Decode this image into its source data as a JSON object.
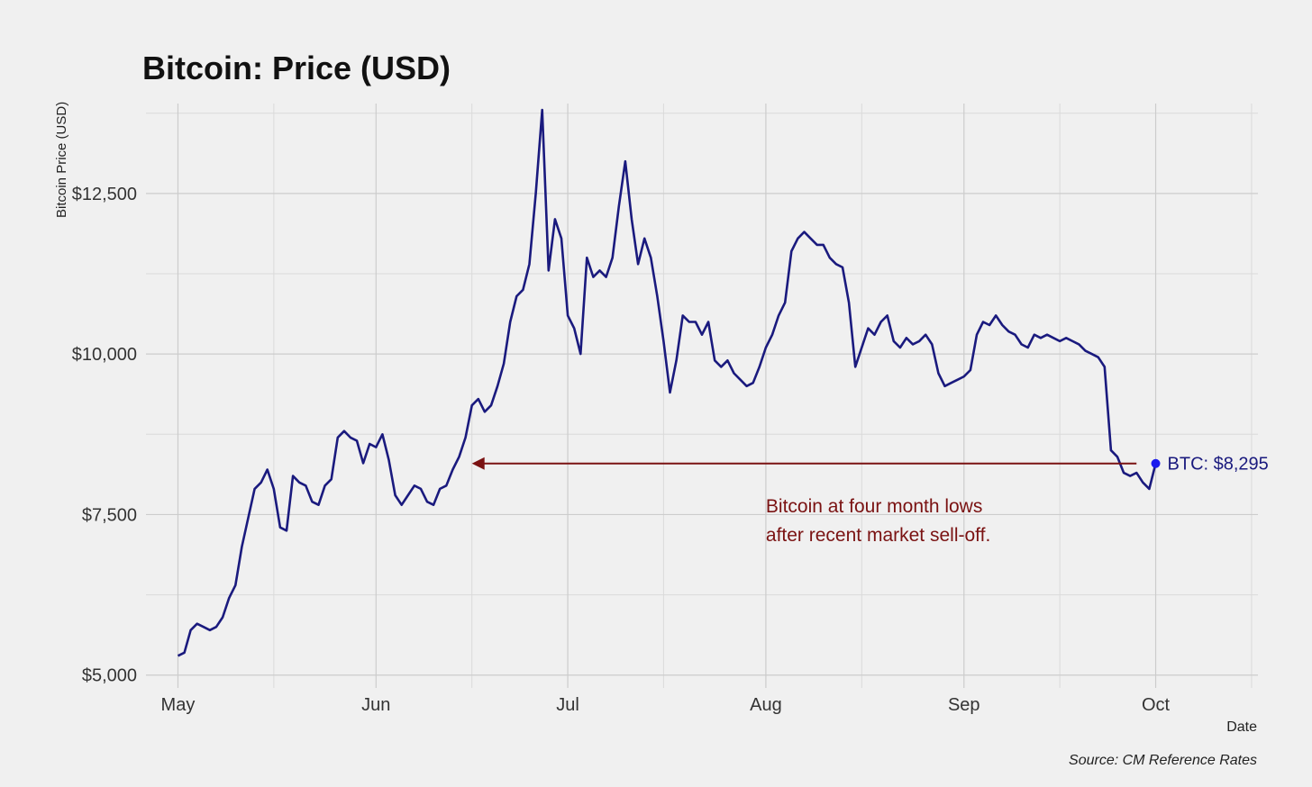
{
  "chart_data": {
    "type": "line",
    "title": "Bitcoin: Price (USD)",
    "xlabel": "Date",
    "ylabel": "Bitcoin Price (USD)",
    "caption": "Source: CM Reference Rates",
    "x_range": [
      "2019-04-26",
      "2019-10-17"
    ],
    "ylim": [
      4800,
      13900
    ],
    "x_ticks": [
      {
        "date": "2019-05-01",
        "label": "May"
      },
      {
        "date": "2019-06-01",
        "label": "Jun"
      },
      {
        "date": "2019-07-01",
        "label": "Jul"
      },
      {
        "date": "2019-08-01",
        "label": "Aug"
      },
      {
        "date": "2019-09-01",
        "label": "Sep"
      },
      {
        "date": "2019-10-01",
        "label": "Oct"
      }
    ],
    "x_minor_gridlines": [
      "2019-05-16",
      "2019-06-16",
      "2019-07-16",
      "2019-08-16",
      "2019-09-16",
      "2019-10-16"
    ],
    "y_ticks": [
      {
        "value": 5000,
        "label": "$5,000"
      },
      {
        "value": 7500,
        "label": "$7,500"
      },
      {
        "value": 10000,
        "label": "$10,000"
      },
      {
        "value": 12500,
        "label": "$12,500"
      }
    ],
    "y_minor_gridlines": [
      6250,
      8750,
      11250,
      13750
    ],
    "grid": true,
    "line_color": "#1a1a7e",
    "series": [
      {
        "points": [
          [
            "2019-05-01",
            5300
          ],
          [
            "2019-05-02",
            5350
          ],
          [
            "2019-05-03",
            5700
          ],
          [
            "2019-05-04",
            5800
          ],
          [
            "2019-05-05",
            5750
          ],
          [
            "2019-05-06",
            5700
          ],
          [
            "2019-05-07",
            5750
          ],
          [
            "2019-05-08",
            5900
          ],
          [
            "2019-05-09",
            6200
          ],
          [
            "2019-05-10",
            6400
          ],
          [
            "2019-05-11",
            7000
          ],
          [
            "2019-05-12",
            7450
          ],
          [
            "2019-05-13",
            7900
          ],
          [
            "2019-05-14",
            8000
          ],
          [
            "2019-05-15",
            8200
          ],
          [
            "2019-05-16",
            7900
          ],
          [
            "2019-05-17",
            7300
          ],
          [
            "2019-05-18",
            7250
          ],
          [
            "2019-05-19",
            8100
          ],
          [
            "2019-05-20",
            8000
          ],
          [
            "2019-05-21",
            7950
          ],
          [
            "2019-05-22",
            7700
          ],
          [
            "2019-05-23",
            7650
          ],
          [
            "2019-05-24",
            7950
          ],
          [
            "2019-05-25",
            8050
          ],
          [
            "2019-05-26",
            8700
          ],
          [
            "2019-05-27",
            8800
          ],
          [
            "2019-05-28",
            8700
          ],
          [
            "2019-05-29",
            8650
          ],
          [
            "2019-05-30",
            8300
          ],
          [
            "2019-05-31",
            8600
          ],
          [
            "2019-06-01",
            8550
          ],
          [
            "2019-06-02",
            8750
          ],
          [
            "2019-06-03",
            8350
          ],
          [
            "2019-06-04",
            7800
          ],
          [
            "2019-06-05",
            7650
          ],
          [
            "2019-06-06",
            7800
          ],
          [
            "2019-06-07",
            7950
          ],
          [
            "2019-06-08",
            7900
          ],
          [
            "2019-06-09",
            7700
          ],
          [
            "2019-06-10",
            7650
          ],
          [
            "2019-06-11",
            7900
          ],
          [
            "2019-06-12",
            7950
          ],
          [
            "2019-06-13",
            8200
          ],
          [
            "2019-06-14",
            8400
          ],
          [
            "2019-06-15",
            8700
          ],
          [
            "2019-06-16",
            9200
          ],
          [
            "2019-06-17",
            9300
          ],
          [
            "2019-06-18",
            9100
          ],
          [
            "2019-06-19",
            9200
          ],
          [
            "2019-06-20",
            9500
          ],
          [
            "2019-06-21",
            9850
          ],
          [
            "2019-06-22",
            10500
          ],
          [
            "2019-06-23",
            10900
          ],
          [
            "2019-06-24",
            11000
          ],
          [
            "2019-06-25",
            11400
          ],
          [
            "2019-06-26",
            12500
          ],
          [
            "2019-06-27",
            13800
          ],
          [
            "2019-06-28",
            11300
          ],
          [
            "2019-06-29",
            12100
          ],
          [
            "2019-06-30",
            11800
          ],
          [
            "2019-07-01",
            10600
          ],
          [
            "2019-07-02",
            10400
          ],
          [
            "2019-07-03",
            10000
          ],
          [
            "2019-07-04",
            11500
          ],
          [
            "2019-07-05",
            11200
          ],
          [
            "2019-07-06",
            11300
          ],
          [
            "2019-07-07",
            11200
          ],
          [
            "2019-07-08",
            11500
          ],
          [
            "2019-07-09",
            12300
          ],
          [
            "2019-07-10",
            13000
          ],
          [
            "2019-07-11",
            12100
          ],
          [
            "2019-07-12",
            11400
          ],
          [
            "2019-07-13",
            11800
          ],
          [
            "2019-07-14",
            11500
          ],
          [
            "2019-07-15",
            10900
          ],
          [
            "2019-07-16",
            10200
          ],
          [
            "2019-07-17",
            9400
          ],
          [
            "2019-07-18",
            9900
          ],
          [
            "2019-07-19",
            10600
          ],
          [
            "2019-07-20",
            10500
          ],
          [
            "2019-07-21",
            10500
          ],
          [
            "2019-07-22",
            10300
          ],
          [
            "2019-07-23",
            10500
          ],
          [
            "2019-07-24",
            9900
          ],
          [
            "2019-07-25",
            9800
          ],
          [
            "2019-07-26",
            9900
          ],
          [
            "2019-07-27",
            9700
          ],
          [
            "2019-07-28",
            9600
          ],
          [
            "2019-07-29",
            9500
          ],
          [
            "2019-07-30",
            9550
          ],
          [
            "2019-07-31",
            9800
          ],
          [
            "2019-08-01",
            10100
          ],
          [
            "2019-08-02",
            10300
          ],
          [
            "2019-08-03",
            10600
          ],
          [
            "2019-08-04",
            10800
          ],
          [
            "2019-08-05",
            11600
          ],
          [
            "2019-08-06",
            11800
          ],
          [
            "2019-08-07",
            11900
          ],
          [
            "2019-08-08",
            11800
          ],
          [
            "2019-08-09",
            11700
          ],
          [
            "2019-08-10",
            11700
          ],
          [
            "2019-08-11",
            11500
          ],
          [
            "2019-08-12",
            11400
          ],
          [
            "2019-08-13",
            11350
          ],
          [
            "2019-08-14",
            10800
          ],
          [
            "2019-08-15",
            9800
          ],
          [
            "2019-08-16",
            10100
          ],
          [
            "2019-08-17",
            10400
          ],
          [
            "2019-08-18",
            10300
          ],
          [
            "2019-08-19",
            10500
          ],
          [
            "2019-08-20",
            10600
          ],
          [
            "2019-08-21",
            10200
          ],
          [
            "2019-08-22",
            10100
          ],
          [
            "2019-08-23",
            10250
          ],
          [
            "2019-08-24",
            10150
          ],
          [
            "2019-08-25",
            10200
          ],
          [
            "2019-08-26",
            10300
          ],
          [
            "2019-08-27",
            10150
          ],
          [
            "2019-08-28",
            9700
          ],
          [
            "2019-08-29",
            9500
          ],
          [
            "2019-08-30",
            9550
          ],
          [
            "2019-08-31",
            9600
          ],
          [
            "2019-09-01",
            9650
          ],
          [
            "2019-09-02",
            9750
          ],
          [
            "2019-09-03",
            10300
          ],
          [
            "2019-09-04",
            10500
          ],
          [
            "2019-09-05",
            10450
          ],
          [
            "2019-09-06",
            10600
          ],
          [
            "2019-09-07",
            10450
          ],
          [
            "2019-09-08",
            10350
          ],
          [
            "2019-09-09",
            10300
          ],
          [
            "2019-09-10",
            10150
          ],
          [
            "2019-09-11",
            10100
          ],
          [
            "2019-09-12",
            10300
          ],
          [
            "2019-09-13",
            10250
          ],
          [
            "2019-09-14",
            10300
          ],
          [
            "2019-09-15",
            10250
          ],
          [
            "2019-09-16",
            10200
          ],
          [
            "2019-09-17",
            10250
          ],
          [
            "2019-09-18",
            10200
          ],
          [
            "2019-09-19",
            10150
          ],
          [
            "2019-09-20",
            10050
          ],
          [
            "2019-09-21",
            10000
          ],
          [
            "2019-09-22",
            9950
          ],
          [
            "2019-09-23",
            9800
          ],
          [
            "2019-09-24",
            8500
          ],
          [
            "2019-09-25",
            8400
          ],
          [
            "2019-09-26",
            8150
          ],
          [
            "2019-09-27",
            8100
          ],
          [
            "2019-09-28",
            8150
          ],
          [
            "2019-09-29",
            8000
          ],
          [
            "2019-09-30",
            7900
          ],
          [
            "2019-10-01",
            8295
          ]
        ]
      }
    ],
    "annotations": [
      {
        "type": "arrow",
        "from": [
          "2019-09-28",
          8295
        ],
        "to": [
          "2019-06-16",
          8295
        ],
        "color": "#7a1212",
        "text_lines": [
          "Bitcoin at four month lows",
          "after recent market sell-off."
        ],
        "text_anchor": [
          "2019-08-01",
          7900
        ]
      },
      {
        "type": "point",
        "at": [
          "2019-10-01",
          8295
        ],
        "label": "BTC: $8,295",
        "color": "#1a1aee",
        "label_color": "#1a1a7e"
      }
    ]
  }
}
